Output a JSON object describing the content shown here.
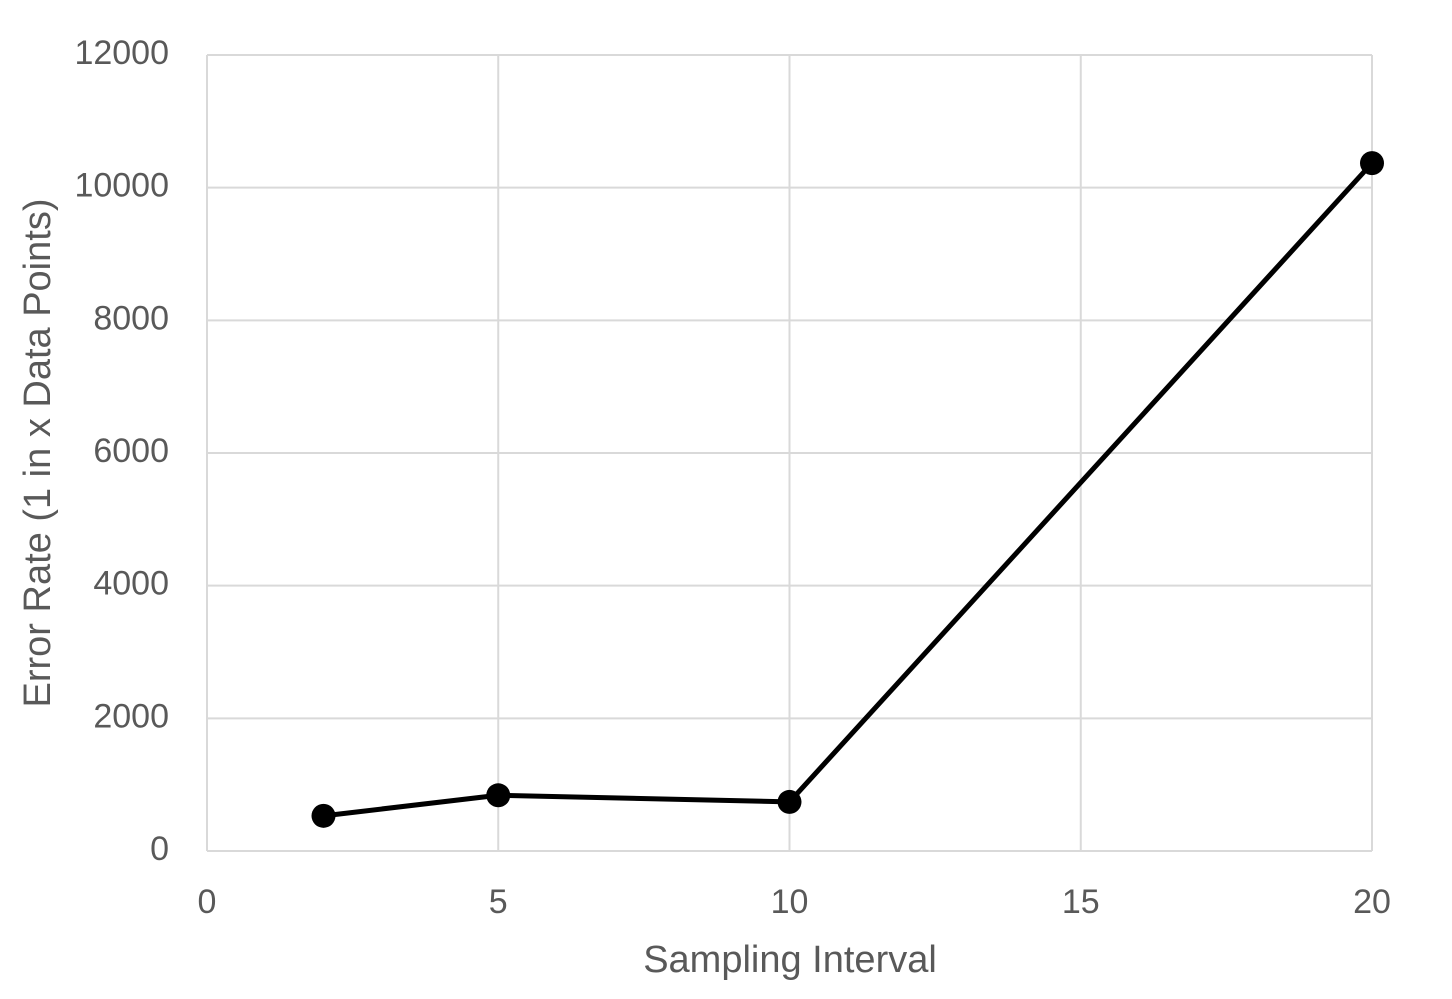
{
  "chart_data": {
    "type": "line",
    "x_label": "Sampling Interval",
    "y_label": "Error Rate (1 in x Data Points)",
    "x": [
      2,
      5,
      10,
      20
    ],
    "series": [
      {
        "color": "#000000",
        "values": [
          530,
          840,
          740,
          10370
        ]
      }
    ],
    "xlim": [
      0,
      20
    ],
    "xticks": [
      0,
      5,
      10,
      15,
      20
    ],
    "ylim": [
      0,
      12000
    ],
    "yticks": [
      0,
      2000,
      4000,
      6000,
      8000,
      10000,
      12000
    ],
    "grid": true
  }
}
